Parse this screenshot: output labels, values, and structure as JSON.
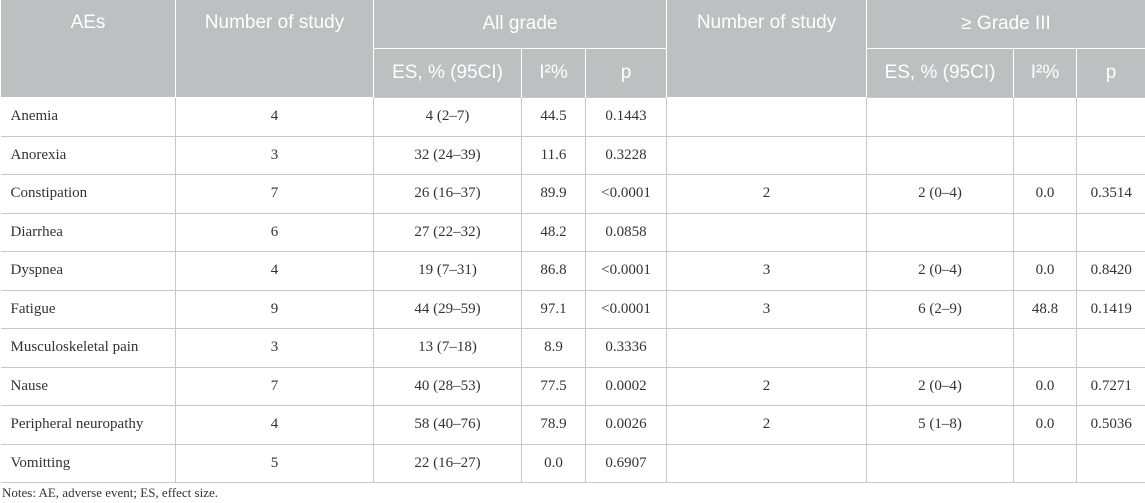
{
  "table": {
    "headers": {
      "aes": "AEs",
      "n_study_all": "Number of study",
      "all_grade": "All grade",
      "n_study_g3": "Number of study",
      "grade3": "≥ Grade III",
      "es_all": "ES, % (95CI)",
      "i2_all": "I²%",
      "p_all": "p",
      "es_g3": "ES, % (95CI)",
      "i2_g3": "I²%",
      "p_g3": "p"
    },
    "rows": [
      [
        "Anemia",
        "4",
        "4 (2–7)",
        "44.5",
        "0.1443",
        "",
        "",
        "",
        ""
      ],
      [
        "Anorexia",
        "3",
        "32 (24–39)",
        "11.6",
        "0.3228",
        "",
        "",
        "",
        ""
      ],
      [
        "Constipation",
        "7",
        "26 (16–37)",
        "89.9",
        "<0.0001",
        "2",
        "2 (0–4)",
        "0.0",
        "0.3514"
      ],
      [
        "Diarrhea",
        "6",
        "27 (22–32)",
        "48.2",
        "0.0858",
        "",
        "",
        "",
        ""
      ],
      [
        "Dyspnea",
        "4",
        "19 (7–31)",
        "86.8",
        "<0.0001",
        "3",
        "2 (0–4)",
        "0.0",
        "0.8420"
      ],
      [
        "Fatigue",
        "9",
        "44 (29–59)",
        "97.1",
        "<0.0001",
        "3",
        "6 (2–9)",
        "48.8",
        "0.1419"
      ],
      [
        "Musculoskeletal pain",
        "3",
        "13 (7–18)",
        "8.9",
        "0.3336",
        "",
        "",
        "",
        ""
      ],
      [
        "Nause",
        "7",
        "40 (28–53)",
        "77.5",
        "0.0002",
        "2",
        "2 (0–4)",
        "0.0",
        "0.7271"
      ],
      [
        "Peripheral neuropathy",
        "4",
        "58 (40–76)",
        "78.9",
        "0.0026",
        "2",
        "5 (1–8)",
        "0.0",
        "0.5036"
      ],
      [
        "Vomitting",
        "5",
        "22 (16–27)",
        "0.0",
        "0.6907",
        "",
        "",
        "",
        ""
      ]
    ]
  },
  "notes": "Notes: AE, adverse event; ES, effect size."
}
